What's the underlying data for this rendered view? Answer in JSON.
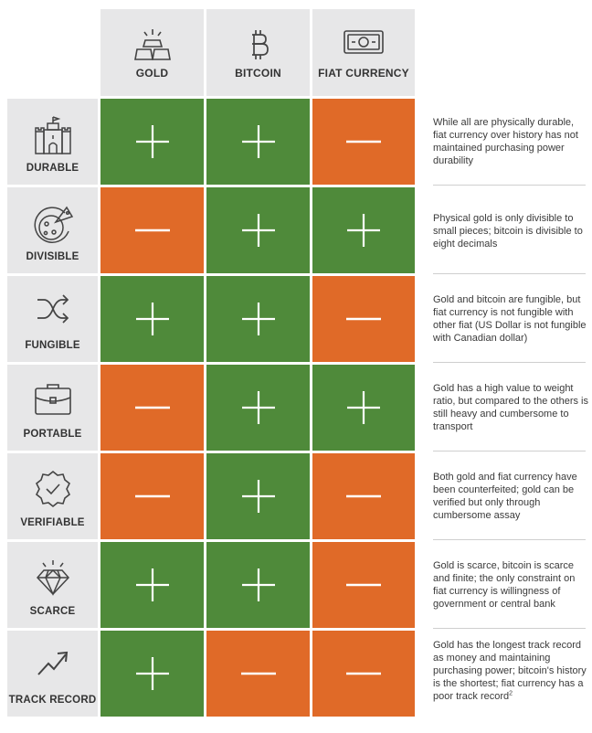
{
  "columns": [
    {
      "label": "GOLD",
      "icon": "gold-bars-icon"
    },
    {
      "label": "BITCOIN",
      "icon": "bitcoin-icon"
    },
    {
      "label": "FIAT CURRENCY",
      "icon": "banknote-icon"
    }
  ],
  "rows": [
    {
      "label": "DURABLE",
      "icon": "castle-icon",
      "values": [
        "plus",
        "plus",
        "minus"
      ],
      "note": "While all are physically durable, fiat currency over history has not maintained purchasing power durability"
    },
    {
      "label": "DIVISIBLE",
      "icon": "pizza-icon",
      "values": [
        "minus",
        "plus",
        "plus"
      ],
      "note": "Physical gold is only divisible to small pieces; bitcoin is divisible to eight decimals"
    },
    {
      "label": "FUNGIBLE",
      "icon": "shuffle-icon",
      "values": [
        "plus",
        "plus",
        "minus"
      ],
      "note": "Gold and bitcoin are fungible, but fiat currency is not fungible with other fiat (US Dollar is not fungible with Canadian dollar)"
    },
    {
      "label": "PORTABLE",
      "icon": "briefcase-icon",
      "values": [
        "minus",
        "plus",
        "plus"
      ],
      "note": "Gold has a high value to weight ratio, but compared to the others is still heavy and cumbersome to transport"
    },
    {
      "label": "VERIFIABLE",
      "icon": "verified-badge-icon",
      "values": [
        "minus",
        "plus",
        "minus"
      ],
      "note": "Both gold and fiat currency have been counterfeited; gold can be verified but only through cumbersome assay"
    },
    {
      "label": "SCARCE",
      "icon": "diamond-icon",
      "values": [
        "plus",
        "plus",
        "minus"
      ],
      "note": "Gold is scarce, bitcoin is scarce and finite; the only constraint on fiat currency is willingness of government or central bank"
    },
    {
      "label": "TRACK RECORD",
      "icon": "trend-up-icon",
      "values": [
        "plus",
        "minus",
        "minus"
      ],
      "note": "Gold has the longest track record as money and maintaining purchasing power; bitcoin's history is the shortest; fiat currency has a poor track record",
      "note_footnote": "2"
    }
  ],
  "colors": {
    "plus": "#4f8a3a",
    "minus": "#e06a28",
    "label_bg": "#e7e7e8"
  }
}
